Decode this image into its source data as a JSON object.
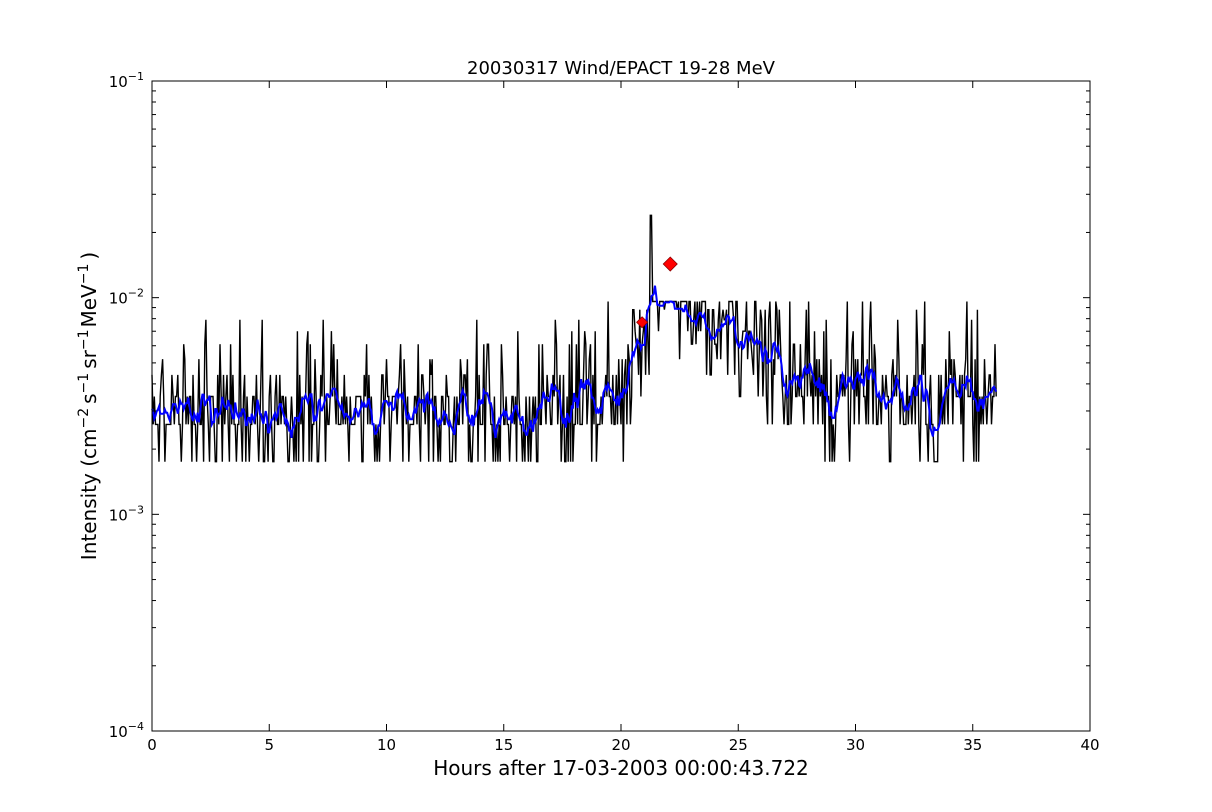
{
  "chart_data": {
    "type": "line",
    "title": "20030317 Wind/EPACT 19-28 MeV",
    "xlabel": "Hours after 17-03-2003 00:00:43.722",
    "ylabel": {
      "prefix": "Intensity (cm",
      "exp1": "−2",
      "mid1": "s",
      "exp2": "−1",
      "mid2": "sr",
      "exp3": "−1",
      "mid3": "MeV",
      "exp4": "−1",
      "suffix": ")"
    },
    "xlim": [
      0,
      40
    ],
    "ylim": [
      0.0001,
      0.1
    ],
    "yscale": "log",
    "grid": false,
    "legend": "none",
    "x_ticks": [
      {
        "value": 0,
        "label": "0"
      },
      {
        "value": 5,
        "label": "5"
      },
      {
        "value": 10,
        "label": "10"
      },
      {
        "value": 15,
        "label": "15"
      },
      {
        "value": 20,
        "label": "20"
      },
      {
        "value": 25,
        "label": "25"
      },
      {
        "value": 30,
        "label": "30"
      },
      {
        "value": 35,
        "label": "35"
      },
      {
        "value": 40,
        "label": "40"
      }
    ],
    "y_ticks": [
      {
        "value": 0.0001,
        "base": "10",
        "exp": "−4"
      },
      {
        "value": 0.001,
        "base": "10",
        "exp": "−3"
      },
      {
        "value": 0.01,
        "base": "10",
        "exp": "−2"
      },
      {
        "value": 0.1,
        "base": "10",
        "exp": "−1"
      }
    ],
    "levels": [
      0.00088,
      0.00175,
      0.0026,
      0.0035,
      0.0044,
      0.0052,
      0.0061,
      0.007,
      0.0079,
      0.0088,
      0.0096
    ],
    "series": [
      {
        "role": "raw",
        "color": "#000000",
        "x_start": 0.0,
        "x_step": 0.05,
        "x_end": 36.0,
        "envelope": [
          [
            0.0,
            0.0028
          ],
          [
            15.0,
            0.0028
          ],
          [
            17.5,
            0.003
          ],
          [
            19.0,
            0.0031
          ],
          [
            20.0,
            0.0035
          ],
          [
            20.5,
            0.0055
          ],
          [
            21.0,
            0.0075
          ],
          [
            21.5,
            0.0095
          ],
          [
            22.0,
            0.0115
          ],
          [
            22.5,
            0.0105
          ],
          [
            23.0,
            0.0095
          ],
          [
            24.0,
            0.0075
          ],
          [
            25.0,
            0.0062
          ],
          [
            26.0,
            0.0055
          ],
          [
            27.0,
            0.0045
          ],
          [
            28.0,
            0.0037
          ],
          [
            30.0,
            0.0035
          ],
          [
            34.0,
            0.0034
          ],
          [
            36.0,
            0.0032
          ]
        ]
      },
      {
        "role": "smoothed",
        "color": "#0000ff",
        "x_start": 0.0,
        "x_end": 36.0
      }
    ],
    "markers": [
      {
        "x": 20.9,
        "y": 0.0077,
        "color": "#ff0000",
        "shape": "diamond"
      },
      {
        "x": 22.1,
        "y": 0.0143,
        "color": "#ff0000",
        "shape": "diamond"
      }
    ]
  }
}
